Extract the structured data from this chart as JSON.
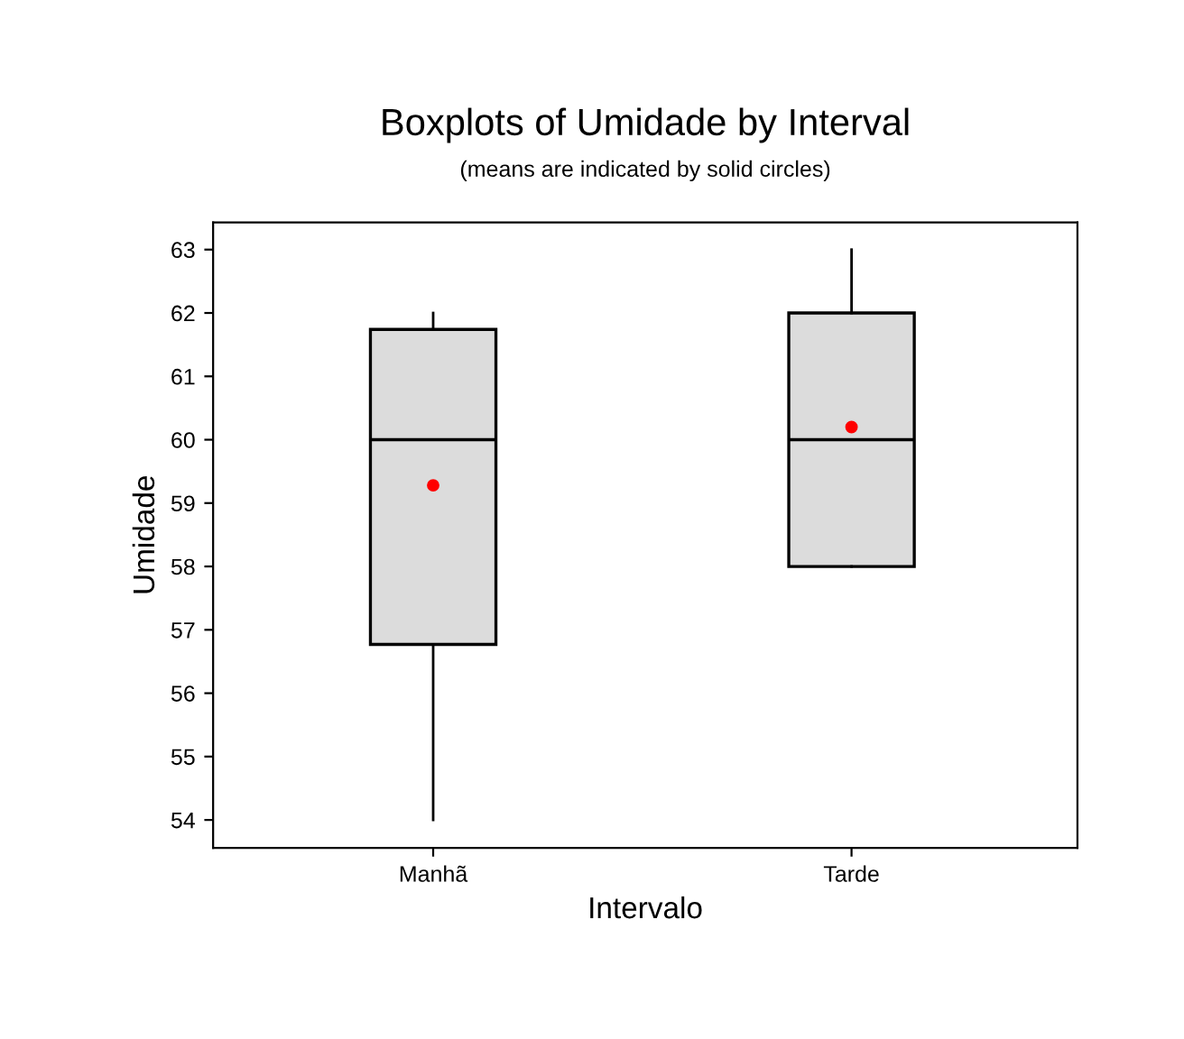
{
  "chart_data": {
    "type": "box",
    "title": "Boxplots of Umidade by Interval",
    "subtitle": "(means are indicated by solid circles)",
    "xlabel": "Intervalo",
    "ylabel": "Umidade",
    "categories": [
      "Manhã",
      "Tarde"
    ],
    "boxes": [
      {
        "low": 54,
        "q1": 56.77,
        "median": 60,
        "q3": 61.74,
        "high": 62,
        "mean": 59.28
      },
      {
        "low": 58,
        "q1": 58,
        "median": 60,
        "q3": 62,
        "high": 63,
        "mean": 60.2
      }
    ],
    "color": "#dcdcdc",
    "ylim": [
      53.56,
      63.43
    ],
    "yticks": [
      54,
      55,
      56,
      57,
      58,
      59,
      60,
      61,
      62,
      63
    ],
    "grid": false,
    "legend": false
  }
}
